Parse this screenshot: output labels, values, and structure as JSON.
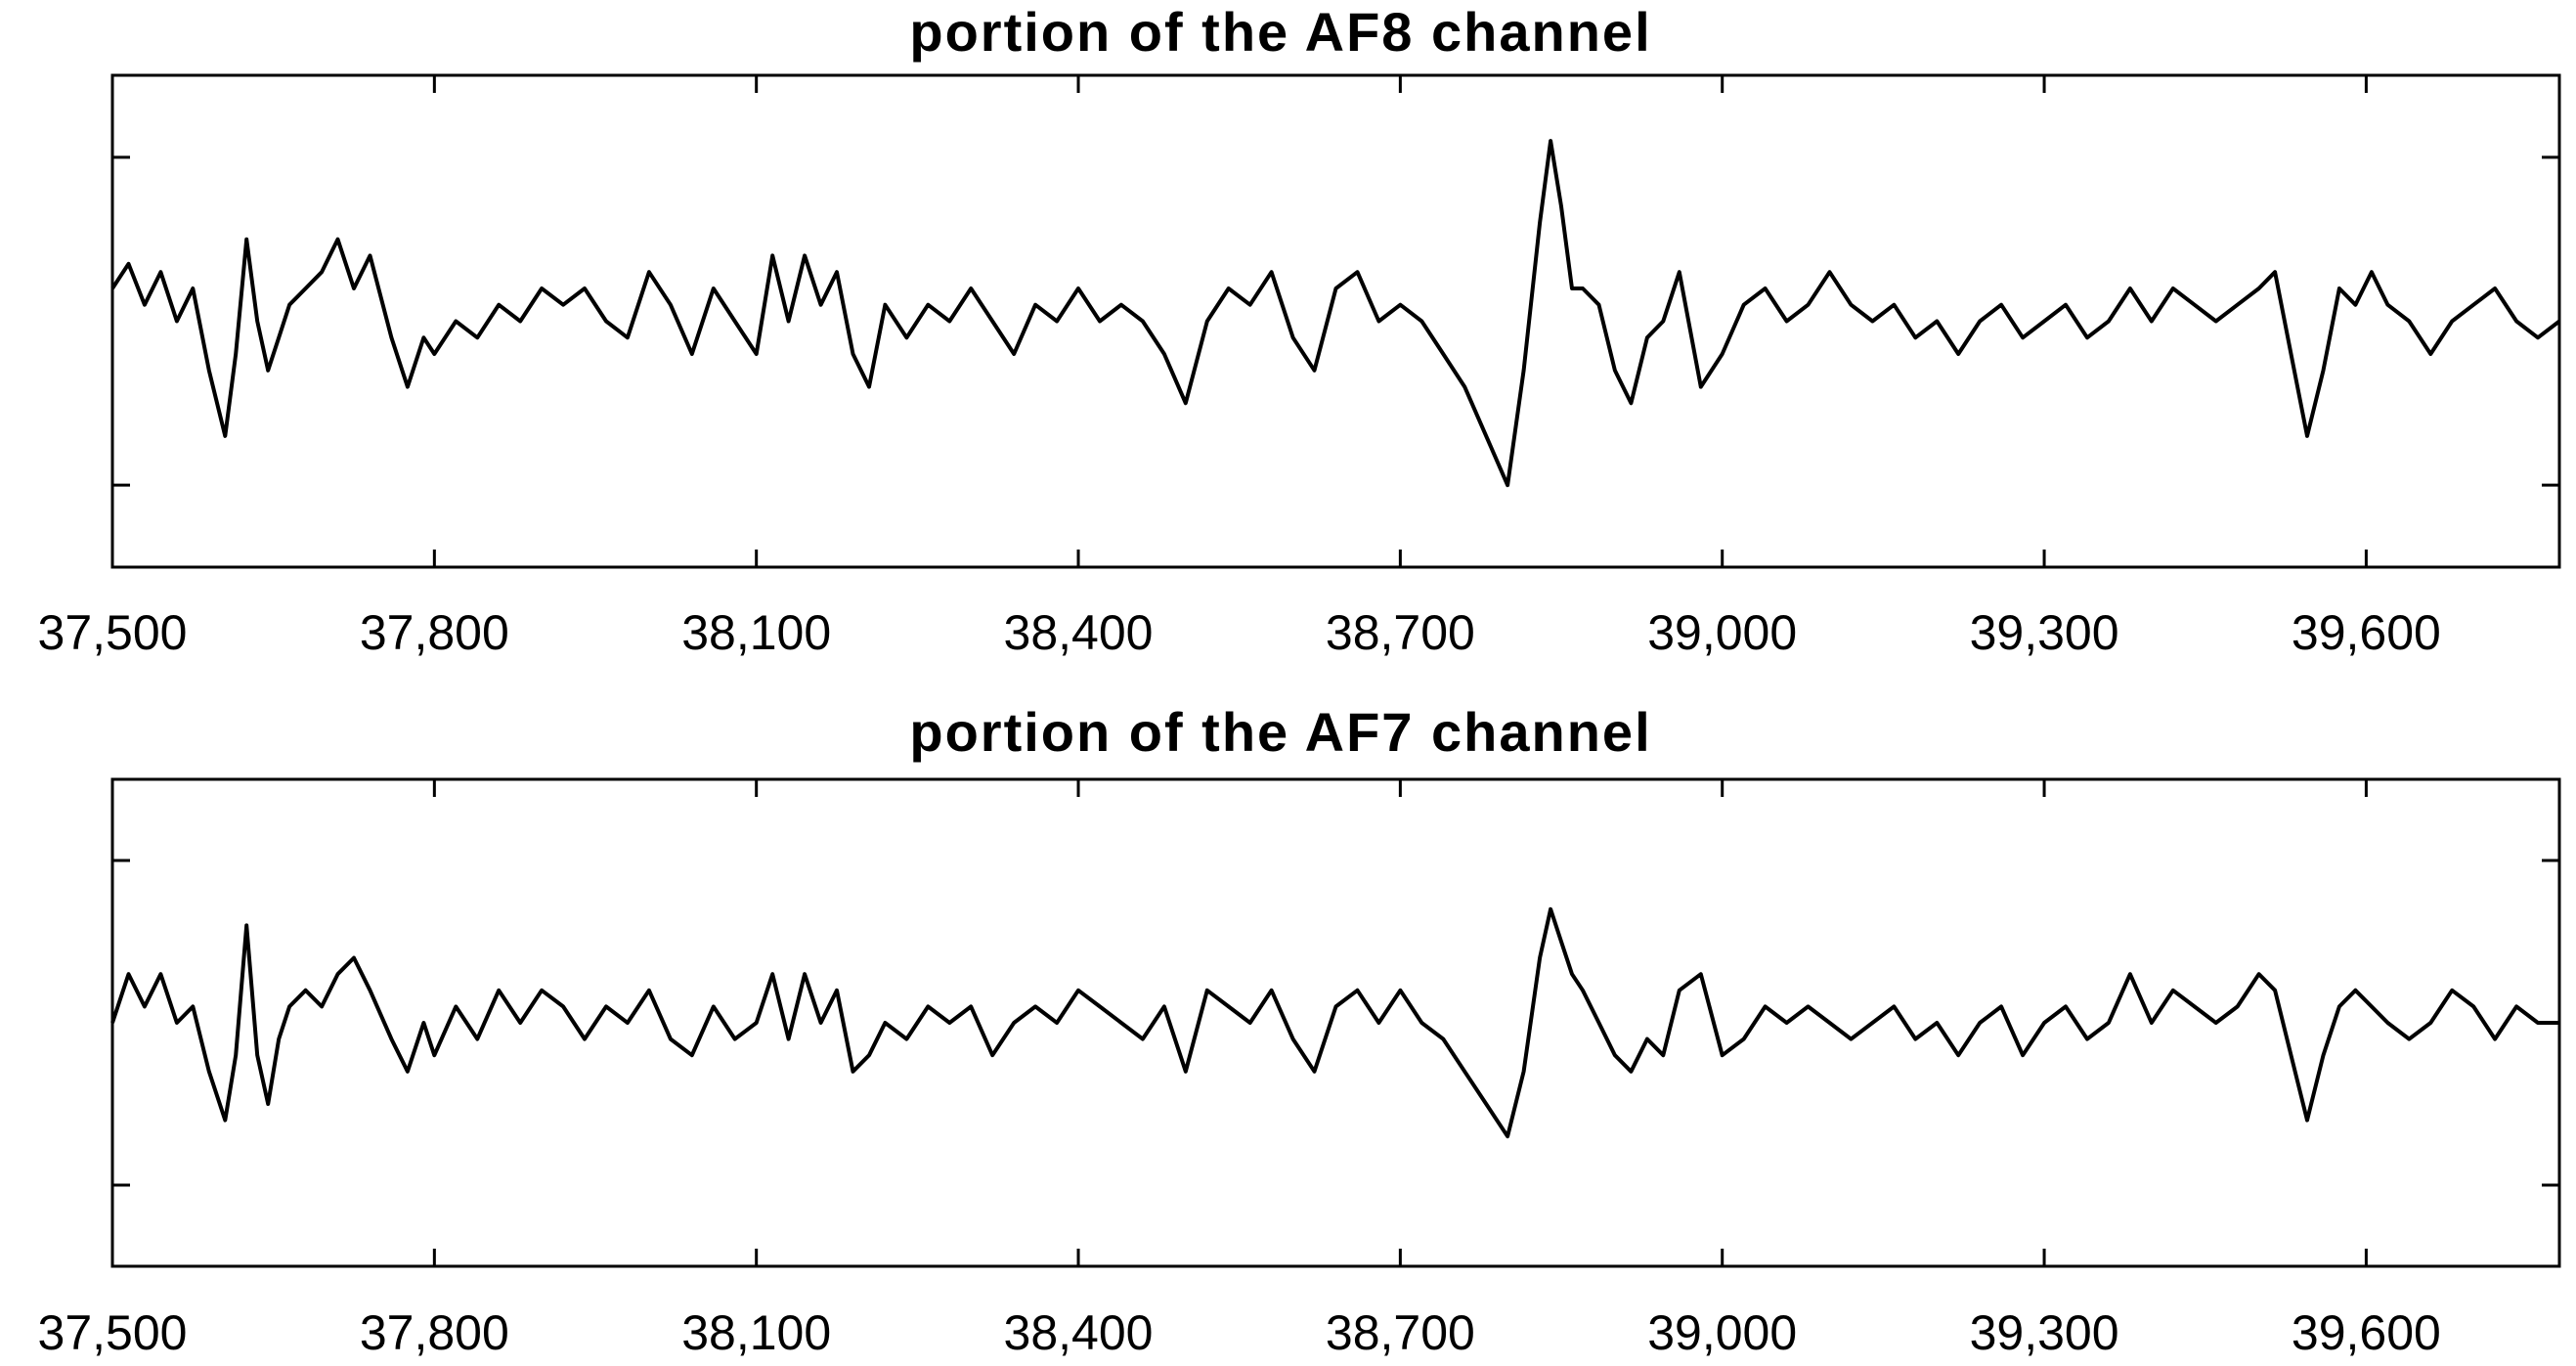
{
  "chart_data": [
    {
      "type": "line",
      "title": "portion of the AF8 channel",
      "xlim": [
        37500,
        39780
      ],
      "ylim": [
        -1.5,
        1.5
      ],
      "x_ticks": [
        37500,
        37800,
        38100,
        38400,
        38700,
        39000,
        39300,
        39600
      ],
      "x_tick_labels": [
        "37,500",
        "37,800",
        "38,100",
        "38,400",
        "38,700",
        "39,000",
        "39,300",
        "39,600"
      ],
      "y_ticks": [
        -1,
        1
      ],
      "y_tick_labels": [
        "",
        ""
      ],
      "grid": false,
      "series": [
        {
          "x": [
            37500,
            37515,
            37530,
            37545,
            37560,
            37575,
            37590,
            37605,
            37615,
            37625,
            37635,
            37645,
            37655,
            37665,
            37680,
            37695,
            37710,
            37725,
            37740,
            37760,
            37775,
            37790,
            37800,
            37820,
            37840,
            37860,
            37880,
            37900,
            37920,
            37940,
            37960,
            37980,
            38000,
            38020,
            38040,
            38060,
            38080,
            38100,
            38115,
            38130,
            38145,
            38160,
            38175,
            38190,
            38205,
            38220,
            38240,
            38260,
            38280,
            38300,
            38320,
            38340,
            38360,
            38380,
            38400,
            38420,
            38440,
            38460,
            38480,
            38500,
            38520,
            38540,
            38560,
            38580,
            38600,
            38620,
            38640,
            38660,
            38680,
            38700,
            38720,
            38740,
            38760,
            38780,
            38800,
            38815,
            38830,
            38840,
            38850,
            38860,
            38870,
            38885,
            38900,
            38915,
            38930,
            38945,
            38960,
            38980,
            39000,
            39020,
            39040,
            39060,
            39080,
            39100,
            39120,
            39140,
            39160,
            39180,
            39200,
            39220,
            39240,
            39260,
            39280,
            39300,
            39320,
            39340,
            39360,
            39380,
            39400,
            39420,
            39440,
            39460,
            39480,
            39500,
            39515,
            39530,
            39545,
            39560,
            39575,
            39590,
            39605,
            39620,
            39640,
            39660,
            39680,
            39700,
            39720,
            39740,
            39760,
            39780
          ],
          "y": [
            0.2,
            0.35,
            0.1,
            0.3,
            0.0,
            0.2,
            -0.3,
            -0.7,
            -0.2,
            0.5,
            0.0,
            -0.3,
            -0.1,
            0.1,
            0.2,
            0.3,
            0.5,
            0.2,
            0.4,
            -0.1,
            -0.4,
            -0.1,
            -0.2,
            0.0,
            -0.1,
            0.1,
            0.0,
            0.2,
            0.1,
            0.2,
            0.0,
            -0.1,
            0.3,
            0.1,
            -0.2,
            0.2,
            0.0,
            -0.2,
            0.4,
            0.0,
            0.4,
            0.1,
            0.3,
            -0.2,
            -0.4,
            0.1,
            -0.1,
            0.1,
            0.0,
            0.2,
            0.0,
            -0.2,
            0.1,
            0.0,
            0.2,
            0.0,
            0.1,
            0.0,
            -0.2,
            -0.5,
            0.0,
            0.2,
            0.1,
            0.3,
            -0.1,
            -0.3,
            0.2,
            0.3,
            0.0,
            0.1,
            0.0,
            -0.2,
            -0.4,
            -0.7,
            -1.0,
            -0.3,
            0.6,
            1.1,
            0.7,
            0.2,
            0.2,
            0.1,
            -0.3,
            -0.5,
            -0.1,
            0.0,
            0.3,
            -0.4,
            -0.2,
            0.1,
            0.2,
            0.0,
            0.1,
            0.3,
            0.1,
            0.0,
            0.1,
            -0.1,
            0.0,
            -0.2,
            0.0,
            0.1,
            -0.1,
            0.0,
            0.1,
            -0.1,
            0.0,
            0.2,
            0.0,
            0.2,
            0.1,
            0.0,
            0.1,
            0.2,
            0.3,
            -0.2,
            -0.7,
            -0.3,
            0.2,
            0.1,
            0.3,
            0.1,
            0.0,
            -0.2,
            0.0,
            0.1,
            0.2,
            0.0,
            -0.1,
            0.0
          ]
        }
      ]
    },
    {
      "type": "line",
      "title": "portion of the AF7 channel",
      "xlim": [
        37500,
        39780
      ],
      "ylim": [
        -1.5,
        1.5
      ],
      "x_ticks": [
        37500,
        37800,
        38100,
        38400,
        38700,
        39000,
        39300,
        39600
      ],
      "x_tick_labels": [
        "37,500",
        "37,800",
        "38,100",
        "38,400",
        "38,700",
        "39,000",
        "39,300",
        "39,600"
      ],
      "y_ticks": [
        -1,
        1
      ],
      "y_tick_labels": [
        "",
        ""
      ],
      "grid": false,
      "series": [
        {
          "x": [
            37500,
            37515,
            37530,
            37545,
            37560,
            37575,
            37590,
            37605,
            37615,
            37625,
            37635,
            37645,
            37655,
            37665,
            37680,
            37695,
            37710,
            37725,
            37740,
            37760,
            37775,
            37790,
            37800,
            37820,
            37840,
            37860,
            37880,
            37900,
            37920,
            37940,
            37960,
            37980,
            38000,
            38020,
            38040,
            38060,
            38080,
            38100,
            38115,
            38130,
            38145,
            38160,
            38175,
            38190,
            38205,
            38220,
            38240,
            38260,
            38280,
            38300,
            38320,
            38340,
            38360,
            38380,
            38400,
            38420,
            38440,
            38460,
            38480,
            38500,
            38520,
            38540,
            38560,
            38580,
            38600,
            38620,
            38640,
            38660,
            38680,
            38700,
            38720,
            38740,
            38760,
            38780,
            38800,
            38815,
            38830,
            38840,
            38850,
            38860,
            38870,
            38885,
            38900,
            38915,
            38930,
            38945,
            38960,
            38980,
            39000,
            39020,
            39040,
            39060,
            39080,
            39100,
            39120,
            39140,
            39160,
            39180,
            39200,
            39220,
            39240,
            39260,
            39280,
            39300,
            39320,
            39340,
            39360,
            39380,
            39400,
            39420,
            39440,
            39460,
            39480,
            39500,
            39515,
            39530,
            39545,
            39560,
            39575,
            39590,
            39605,
            39620,
            39640,
            39660,
            39680,
            39700,
            39720,
            39740,
            39760,
            39780
          ],
          "y": [
            0.0,
            0.3,
            0.1,
            0.3,
            0.0,
            0.1,
            -0.3,
            -0.6,
            -0.2,
            0.6,
            -0.2,
            -0.5,
            -0.1,
            0.1,
            0.2,
            0.1,
            0.3,
            0.4,
            0.2,
            -0.1,
            -0.3,
            0.0,
            -0.2,
            0.1,
            -0.1,
            0.2,
            0.0,
            0.2,
            0.1,
            -0.1,
            0.1,
            0.0,
            0.2,
            -0.1,
            -0.2,
            0.1,
            -0.1,
            0.0,
            0.3,
            -0.1,
            0.3,
            0.0,
            0.2,
            -0.3,
            -0.2,
            0.0,
            -0.1,
            0.1,
            0.0,
            0.1,
            -0.2,
            0.0,
            0.1,
            0.0,
            0.2,
            0.1,
            0.0,
            -0.1,
            0.1,
            -0.3,
            0.2,
            0.1,
            0.0,
            0.2,
            -0.1,
            -0.3,
            0.1,
            0.2,
            0.0,
            0.2,
            0.0,
            -0.1,
            -0.3,
            -0.5,
            -0.7,
            -0.3,
            0.4,
            0.7,
            0.5,
            0.3,
            0.2,
            0.0,
            -0.2,
            -0.3,
            -0.1,
            -0.2,
            0.2,
            0.3,
            -0.2,
            -0.1,
            0.1,
            0.0,
            0.1,
            0.0,
            -0.1,
            0.0,
            0.1,
            -0.1,
            0.0,
            -0.2,
            0.0,
            0.1,
            -0.2,
            0.0,
            0.1,
            -0.1,
            0.0,
            0.3,
            0.0,
            0.2,
            0.1,
            0.0,
            0.1,
            0.3,
            0.2,
            -0.2,
            -0.6,
            -0.2,
            0.1,
            0.2,
            0.1,
            0.0,
            -0.1,
            0.0,
            0.2,
            0.1,
            -0.1,
            0.1,
            0.0,
            0.0
          ]
        }
      ]
    }
  ]
}
